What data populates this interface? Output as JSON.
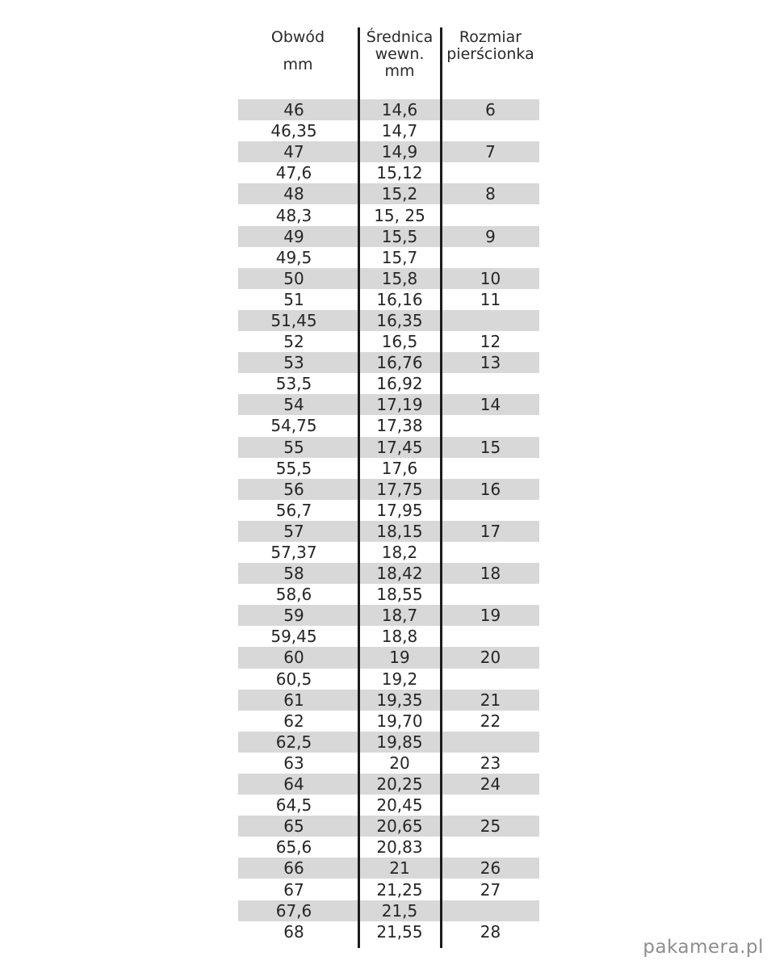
{
  "watermark": "pakamera.pl",
  "colors": {
    "band": "#d8d8d8",
    "divider": "#1c1c1c",
    "text": "#262626",
    "watermark": "#8d8d8d",
    "background": "#ffffff"
  },
  "chart_data": {
    "type": "table",
    "title": "",
    "columns": [
      {
        "id": "obwod_mm",
        "title_lines": [
          "Obwód",
          "mm"
        ]
      },
      {
        "id": "srednica_wewn_mm",
        "title_lines": [
          "Średnica",
          "wewn.",
          "mm"
        ]
      },
      {
        "id": "rozmiar",
        "title_lines": [
          "Rozmiar",
          "pierścionka"
        ]
      }
    ],
    "rows": [
      {
        "obwod_mm": "46",
        "srednica_wewn_mm": "14,6",
        "rozmiar": "6",
        "shaded": true
      },
      {
        "obwod_mm": "46,35",
        "srednica_wewn_mm": "14,7",
        "rozmiar": "",
        "shaded": false
      },
      {
        "obwod_mm": "47",
        "srednica_wewn_mm": "14,9",
        "rozmiar": "7",
        "shaded": true
      },
      {
        "obwod_mm": "47,6",
        "srednica_wewn_mm": "15,12",
        "rozmiar": "",
        "shaded": false
      },
      {
        "obwod_mm": "48",
        "srednica_wewn_mm": "15,2",
        "rozmiar": "8",
        "shaded": true
      },
      {
        "obwod_mm": "48,3",
        "srednica_wewn_mm": "15, 25",
        "rozmiar": "",
        "shaded": false
      },
      {
        "obwod_mm": "49",
        "srednica_wewn_mm": "15,5",
        "rozmiar": "9",
        "shaded": true
      },
      {
        "obwod_mm": "49,5",
        "srednica_wewn_mm": "15,7",
        "rozmiar": "",
        "shaded": false
      },
      {
        "obwod_mm": "50",
        "srednica_wewn_mm": "15,8",
        "rozmiar": "10",
        "shaded": true
      },
      {
        "obwod_mm": "51",
        "srednica_wewn_mm": "16,16",
        "rozmiar": "11",
        "shaded": false
      },
      {
        "obwod_mm": "51,45",
        "srednica_wewn_mm": "16,35",
        "rozmiar": "",
        "shaded": true
      },
      {
        "obwod_mm": "52",
        "srednica_wewn_mm": "16,5",
        "rozmiar": "12",
        "shaded": false
      },
      {
        "obwod_mm": "53",
        "srednica_wewn_mm": "16,76",
        "rozmiar": "13",
        "shaded": true
      },
      {
        "obwod_mm": "53,5",
        "srednica_wewn_mm": "16,92",
        "rozmiar": "",
        "shaded": false
      },
      {
        "obwod_mm": "54",
        "srednica_wewn_mm": "17,19",
        "rozmiar": "14",
        "shaded": true
      },
      {
        "obwod_mm": "54,75",
        "srednica_wewn_mm": "17,38",
        "rozmiar": "",
        "shaded": false
      },
      {
        "obwod_mm": "55",
        "srednica_wewn_mm": "17,45",
        "rozmiar": "15",
        "shaded": true
      },
      {
        "obwod_mm": "55,5",
        "srednica_wewn_mm": "17,6",
        "rozmiar": "",
        "shaded": false
      },
      {
        "obwod_mm": "56",
        "srednica_wewn_mm": "17,75",
        "rozmiar": "16",
        "shaded": true
      },
      {
        "obwod_mm": "56,7",
        "srednica_wewn_mm": "17,95",
        "rozmiar": "",
        "shaded": false
      },
      {
        "obwod_mm": "57",
        "srednica_wewn_mm": "18,15",
        "rozmiar": "17",
        "shaded": true
      },
      {
        "obwod_mm": "57,37",
        "srednica_wewn_mm": "18,2",
        "rozmiar": "",
        "shaded": false
      },
      {
        "obwod_mm": "58",
        "srednica_wewn_mm": "18,42",
        "rozmiar": "18",
        "shaded": true
      },
      {
        "obwod_mm": "58,6",
        "srednica_wewn_mm": "18,55",
        "rozmiar": "",
        "shaded": false
      },
      {
        "obwod_mm": "59",
        "srednica_wewn_mm": "18,7",
        "rozmiar": "19",
        "shaded": true
      },
      {
        "obwod_mm": "59,45",
        "srednica_wewn_mm": "18,8",
        "rozmiar": "",
        "shaded": false
      },
      {
        "obwod_mm": "60",
        "srednica_wewn_mm": "19",
        "rozmiar": "20",
        "shaded": true
      },
      {
        "obwod_mm": "60,5",
        "srednica_wewn_mm": "19,2",
        "rozmiar": "",
        "shaded": false
      },
      {
        "obwod_mm": "61",
        "srednica_wewn_mm": "19,35",
        "rozmiar": "21",
        "shaded": true
      },
      {
        "obwod_mm": "62",
        "srednica_wewn_mm": "19,70",
        "rozmiar": "22",
        "shaded": false
      },
      {
        "obwod_mm": "62,5",
        "srednica_wewn_mm": "19,85",
        "rozmiar": "",
        "shaded": true
      },
      {
        "obwod_mm": "63",
        "srednica_wewn_mm": "20",
        "rozmiar": "23",
        "shaded": false
      },
      {
        "obwod_mm": "64",
        "srednica_wewn_mm": "20,25",
        "rozmiar": "24",
        "shaded": true
      },
      {
        "obwod_mm": "64,5",
        "srednica_wewn_mm": "20,45",
        "rozmiar": "",
        "shaded": false
      },
      {
        "obwod_mm": "65",
        "srednica_wewn_mm": "20,65",
        "rozmiar": "25",
        "shaded": true
      },
      {
        "obwod_mm": "65,6",
        "srednica_wewn_mm": "20,83",
        "rozmiar": "",
        "shaded": false
      },
      {
        "obwod_mm": "66",
        "srednica_wewn_mm": "21",
        "rozmiar": "26",
        "shaded": true
      },
      {
        "obwod_mm": "67",
        "srednica_wewn_mm": "21,25",
        "rozmiar": "27",
        "shaded": false
      },
      {
        "obwod_mm": "67,6",
        "srednica_wewn_mm": "21,5",
        "rozmiar": "",
        "shaded": true
      },
      {
        "obwod_mm": "68",
        "srednica_wewn_mm": "21,55",
        "rozmiar": "28",
        "shaded": false
      }
    ]
  }
}
